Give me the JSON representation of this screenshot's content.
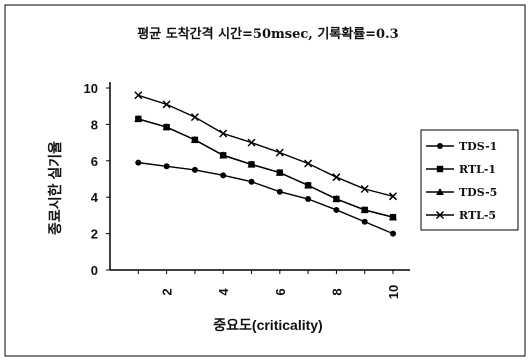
{
  "chart_data": {
    "type": "line",
    "title": "평균 도착간격 시간=50msec, 기록확률=0.3",
    "xlabel": "중요도(criticality)",
    "ylabel": "종료시한 실기율",
    "x": [
      1,
      2,
      3,
      4,
      5,
      6,
      7,
      8,
      9,
      10
    ],
    "xticks": [
      2,
      4,
      6,
      8,
      10
    ],
    "xlim": [
      0,
      10.6
    ],
    "ylim": [
      0,
      10
    ],
    "yticks": [
      0,
      2,
      4,
      6,
      8,
      10
    ],
    "grid": false,
    "legend": "right",
    "series": [
      {
        "name": "TDS-1",
        "marker": "circle",
        "color": "#000000",
        "values": [
          5.9,
          5.7,
          5.5,
          5.2,
          4.85,
          4.3,
          3.9,
          3.3,
          2.65,
          2.0
        ]
      },
      {
        "name": "RTL-1",
        "marker": "square",
        "color": "#000000",
        "values": [
          8.3,
          7.85,
          7.15,
          6.3,
          5.8,
          5.35,
          4.65,
          3.9,
          3.3,
          2.9
        ]
      },
      {
        "name": "TDS-5",
        "marker": "triangle",
        "color": "#000000",
        "values": [
          8.3,
          7.85,
          7.15,
          6.3,
          5.8,
          5.35,
          4.65,
          3.9,
          3.3,
          2.9
        ]
      },
      {
        "name": "RTL-5",
        "marker": "x",
        "color": "#000000",
        "values": [
          9.6,
          9.1,
          8.4,
          7.5,
          7.0,
          6.45,
          5.85,
          5.1,
          4.45,
          4.05
        ]
      }
    ]
  }
}
